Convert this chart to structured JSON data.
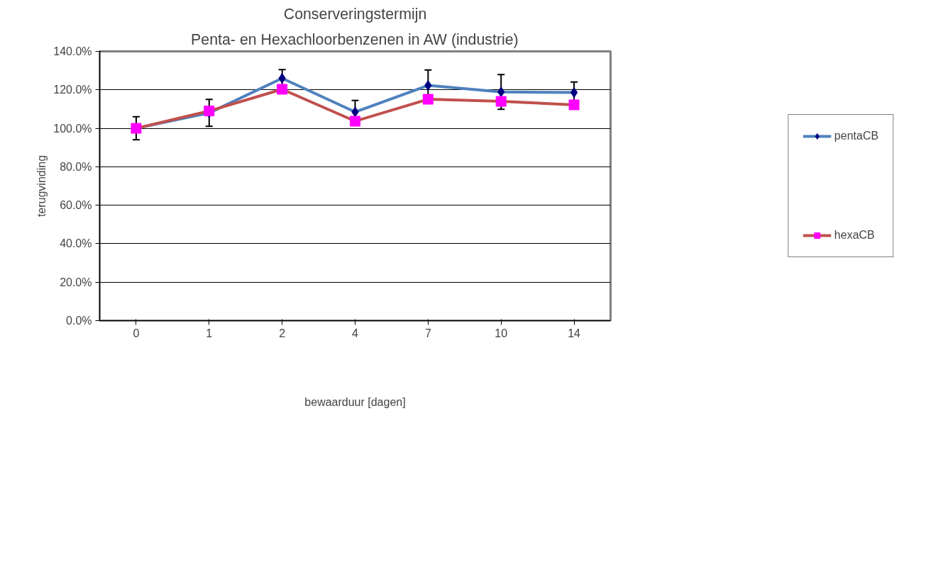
{
  "chart_data": {
    "type": "line",
    "title": "Conserveringstermijn",
    "subtitle": "Penta- en Hexachloorbenzenen in AW (industrie)",
    "xlabel": "bewaarduur [dagen]",
    "ylabel": "terugvinding",
    "categories": [
      "0",
      "1",
      "2",
      "4",
      "7",
      "10",
      "14"
    ],
    "series": [
      {
        "name": "pentaCB",
        "color": "#4f81bd",
        "colors": [
          "#000080",
          "#000080",
          "#000080",
          "#000080",
          "#000080",
          "#000080",
          "#000080"
        ],
        "marker": "diamond",
        "values": [
          100,
          108,
          126,
          108.5,
          122.3,
          118.9,
          118.6
        ],
        "errors": [
          6,
          7,
          4.5,
          6,
          8,
          9,
          5.5
        ]
      },
      {
        "name": "hexaCB",
        "color": "#c0504d",
        "colors": [
          "#ff00ff",
          "#ff00ff",
          "#ff00ff",
          "#ff00ff",
          "#ff00ff",
          "#ff00ff",
          "#ff00ff"
        ],
        "marker": "square",
        "values": [
          100,
          109,
          120.3,
          103.7,
          115.1,
          114,
          112.2
        ]
      }
    ],
    "ylim": [
      0,
      140
    ],
    "yticks": [
      {
        "value": 0,
        "label": "0.0%"
      },
      {
        "value": 20,
        "label": "20.0%"
      },
      {
        "value": 40,
        "label": "40.0%"
      },
      {
        "value": 60,
        "label": "60.0%"
      },
      {
        "value": 80,
        "label": "80.0%"
      },
      {
        "value": 100,
        "label": "100.0%"
      },
      {
        "value": 120,
        "label": "120.0%"
      },
      {
        "value": 140,
        "label": "140.0%"
      }
    ],
    "grid": "y",
    "legend": "right"
  }
}
